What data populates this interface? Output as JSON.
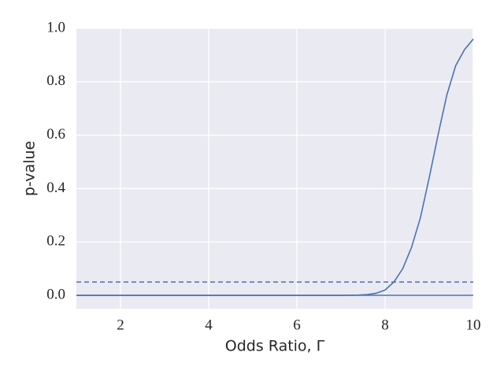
{
  "chart_data": {
    "type": "line",
    "x_label": "Odds Ratio, Γ",
    "y_label": "p-value",
    "x": [
      1,
      1.5,
      2,
      2.5,
      3,
      3.5,
      4,
      4.5,
      5,
      5.5,
      6,
      6.5,
      7,
      7.2,
      7.4,
      7.6,
      7.8,
      8.0,
      8.2,
      8.4,
      8.6,
      8.8,
      9.0,
      9.2,
      9.4,
      9.6,
      9.8,
      10.0
    ],
    "series": [
      {
        "color": "#4c72b0",
        "values": [
          0,
          0,
          0,
          0,
          0,
          0,
          0,
          0,
          0,
          0,
          0,
          0,
          0,
          0.0003,
          0.001,
          0.003,
          0.008,
          0.02,
          0.05,
          0.1,
          0.18,
          0.29,
          0.44,
          0.6,
          0.75,
          0.86,
          0.92,
          0.96
        ]
      }
    ],
    "hlines": [
      0,
      0.05
    ],
    "hline_styles": [
      "solid",
      "dashed"
    ],
    "hline_color": "#4c72b0",
    "xlim": [
      1,
      10
    ],
    "ylim": [
      -0.05,
      1.0
    ],
    "xticks": [
      2,
      4,
      6,
      8,
      10
    ],
    "yticks": [
      {
        "value": 0,
        "label": "0.0"
      },
      0.2,
      0.4,
      0.6,
      0.8,
      {
        "value": 1,
        "label": "1.0"
      }
    ],
    "grid": true
  }
}
